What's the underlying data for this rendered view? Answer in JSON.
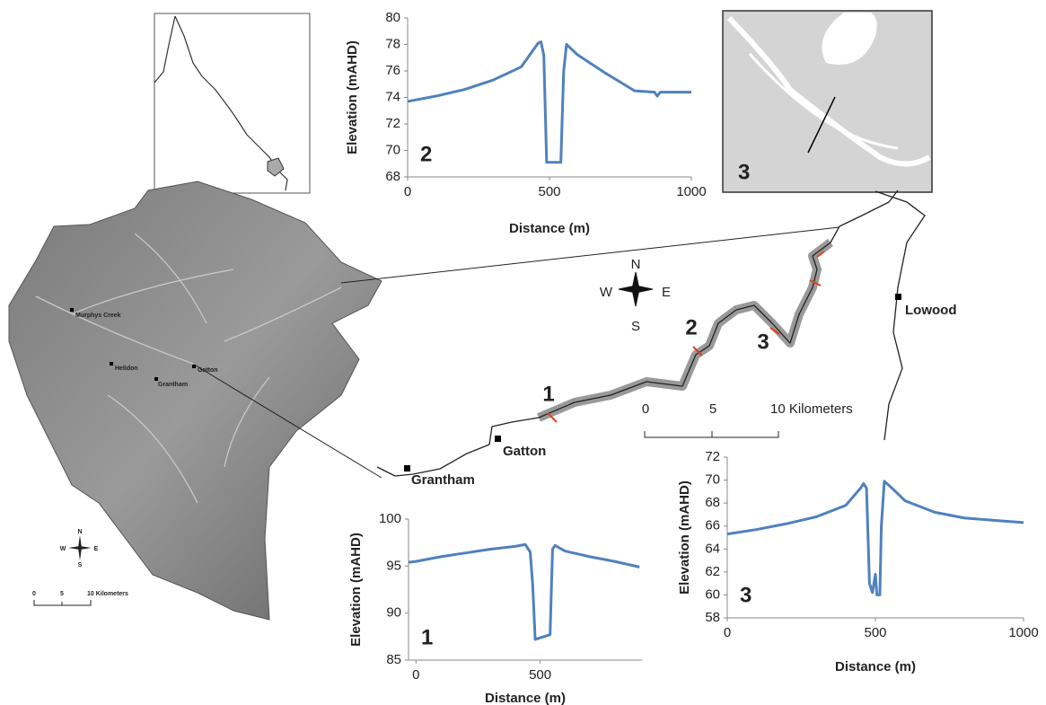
{
  "chart_data": [
    {
      "type": "line",
      "annotation": "2",
      "x_label": "Distance (m)",
      "y_label": "Elevation (mAHD)",
      "color": "#4f81bd",
      "xlim": [
        0,
        1000
      ],
      "ylim": [
        68,
        80
      ],
      "xticks": [
        0,
        500,
        1000
      ],
      "yticks": [
        68,
        70,
        72,
        74,
        76,
        78,
        80
      ],
      "x": [
        0,
        100,
        200,
        300,
        400,
        460,
        470,
        480,
        490,
        540,
        550,
        560,
        600,
        700,
        800,
        870,
        880,
        890,
        1000
      ],
      "values": [
        73.7,
        74.1,
        74.6,
        75.3,
        76.3,
        78.1,
        78.2,
        77.2,
        69.1,
        69.1,
        76,
        78,
        77.2,
        75.8,
        74.5,
        74.4,
        74.1,
        74.4,
        74.4
      ]
    },
    {
      "type": "line",
      "annotation": "1",
      "x_label": "Distance (m)",
      "y_label": "Elevation (mAHD)",
      "color": "#4f81bd",
      "xlim": [
        -30,
        910
      ],
      "ylim": [
        85,
        100
      ],
      "xticks": [
        0,
        500
      ],
      "yticks": [
        85,
        90,
        95,
        100
      ],
      "x": [
        -30,
        0,
        100,
        200,
        300,
        400,
        440,
        460,
        470,
        480,
        540,
        550,
        560,
        600,
        700,
        800,
        900
      ],
      "values": [
        95.4,
        95.5,
        96,
        96.4,
        96.8,
        97.1,
        97.3,
        96.5,
        93,
        87.2,
        87.7,
        96.8,
        97.2,
        96.6,
        96,
        95.5,
        94.9
      ]
    },
    {
      "type": "line",
      "annotation": "3",
      "x_label": "Distance (m)",
      "y_label": "Elevation (mAHD)",
      "color": "#4f81bd",
      "xlim": [
        0,
        1000
      ],
      "ylim": [
        58,
        72
      ],
      "xticks": [
        0,
        500,
        1000
      ],
      "yticks": [
        58,
        60,
        62,
        64,
        66,
        68,
        70,
        72
      ],
      "x": [
        0,
        100,
        200,
        300,
        400,
        450,
        460,
        470,
        480,
        490,
        500,
        505,
        515,
        520,
        530,
        560,
        600,
        700,
        800,
        900,
        1000
      ],
      "values": [
        65.3,
        65.7,
        66.2,
        66.8,
        67.8,
        69.3,
        69.7,
        69.3,
        61,
        60.2,
        61.8,
        60,
        60,
        66,
        69.9,
        69.2,
        68.2,
        67.2,
        66.7,
        66.5,
        66.3
      ]
    }
  ],
  "map": {
    "dem_labels": [
      "Murphys Creek",
      "Helidon",
      "Grantham",
      "Gatton"
    ],
    "dem_compass": [
      "N",
      "W",
      "E",
      "S"
    ],
    "dem_scale": [
      "0",
      "5",
      "10 Kilometers"
    ],
    "compass": [
      "N",
      "W",
      "E",
      "S"
    ],
    "towns": [
      "Lowood",
      "Gatton",
      "Grantham"
    ],
    "sections": [
      "1",
      "2",
      "3"
    ],
    "scale": [
      "0",
      "5",
      "10 Kilometers"
    ],
    "inset_label": "3"
  }
}
